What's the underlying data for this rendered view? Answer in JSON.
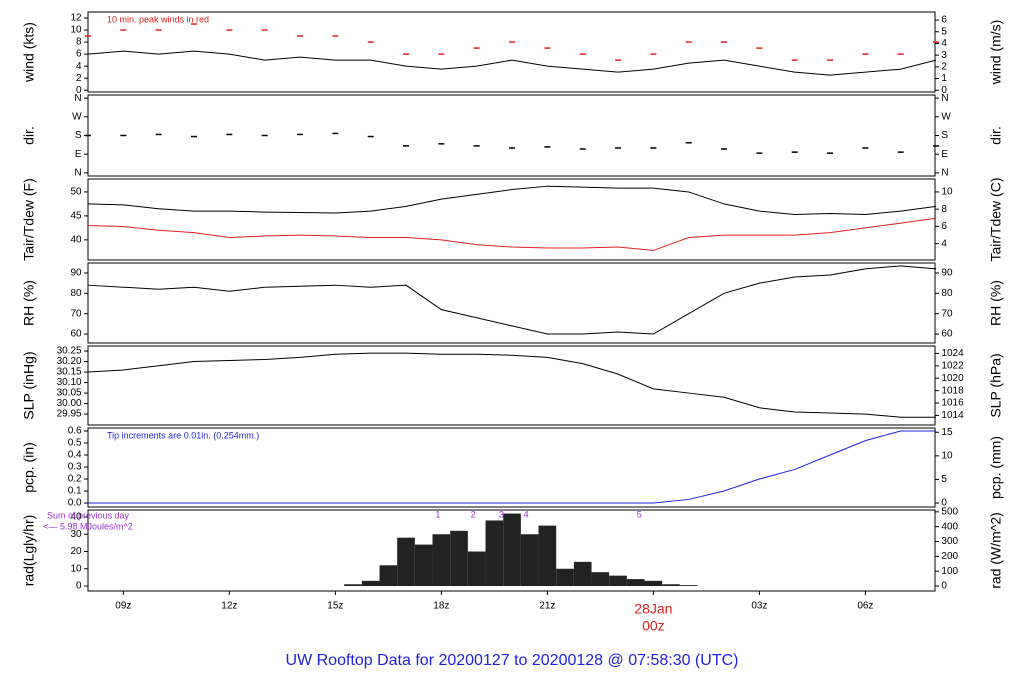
{
  "title": "UW Rooftop Data for 20200127  to  20200128 @ 07:58:30  (UTC)",
  "title_color": "#1f1fe0",
  "chart_data": [
    {
      "type": "line",
      "ylabel": "wind (kts)",
      "y2label": "wind (m/s)",
      "xlim": [
        8.0,
        31.97
      ],
      "ylim": [
        -0.3,
        13
      ],
      "yticks": [
        0,
        2,
        4,
        6,
        8,
        10,
        12
      ],
      "y2lim": [
        -0.15,
        6.69
      ],
      "y2ticks": [
        0,
        1,
        2,
        3,
        4,
        5,
        6
      ],
      "annotation": "10 min. peak winds in red",
      "annotation_color": "#e02020",
      "series": [
        {
          "name": "wind",
          "type": "line",
          "color": "#000000",
          "x": [
            8,
            9,
            10,
            11,
            12,
            13,
            14,
            15,
            16,
            17,
            18,
            19,
            20,
            21,
            22,
            23,
            24,
            25,
            26,
            27,
            28,
            29,
            30,
            31,
            32
          ],
          "values": [
            6,
            6.5,
            6,
            6.5,
            6,
            5,
            5.5,
            5,
            5,
            4,
            3.5,
            4,
            5,
            4,
            3.5,
            3,
            3.5,
            4.5,
            5,
            4,
            3,
            2.5,
            3,
            3.5,
            5
          ]
        },
        {
          "name": "peak",
          "type": "scatter",
          "color": "#e02020",
          "x": [
            8,
            9,
            10,
            11,
            12,
            13,
            14,
            15,
            16,
            17,
            18,
            19,
            20,
            21,
            22,
            23,
            24,
            25,
            26,
            27,
            28,
            29,
            30,
            31,
            32
          ],
          "values": [
            9,
            10,
            10,
            11,
            10,
            10,
            9,
            9,
            8,
            6,
            6,
            7,
            8,
            7,
            6,
            5,
            6,
            8,
            8,
            7,
            5,
            5,
            6,
            6,
            8
          ]
        }
      ]
    },
    {
      "type": "scatter",
      "ylabel": "dir.",
      "y2label": "dir.",
      "xlim": [
        8.0,
        31.97
      ],
      "ylim": [
        -15,
        375
      ],
      "yticks": [
        {
          "value": 0,
          "label": "N"
        },
        {
          "value": 90,
          "label": "E"
        },
        {
          "value": 180,
          "label": "S"
        },
        {
          "value": 270,
          "label": "W"
        },
        {
          "value": 360,
          "label": "N"
        }
      ],
      "y2lim": [
        -15,
        375
      ],
      "y2ticks": [
        {
          "value": 0,
          "label": "N"
        },
        {
          "value": 90,
          "label": "E"
        },
        {
          "value": 180,
          "label": "S"
        },
        {
          "value": 270,
          "label": "W"
        },
        {
          "value": 360,
          "label": "N"
        }
      ],
      "series": [
        {
          "name": "dir",
          "type": "scatter",
          "color": "#000000",
          "x": [
            8,
            9,
            10,
            11,
            12,
            13,
            14,
            15,
            16,
            17,
            18,
            19,
            20,
            21,
            22,
            23,
            24,
            25,
            26,
            27,
            28,
            29,
            30,
            31,
            32
          ],
          "values": [
            180,
            180,
            185,
            175,
            185,
            180,
            185,
            190,
            175,
            130,
            140,
            130,
            120,
            125,
            115,
            120,
            120,
            145,
            115,
            95,
            100,
            95,
            120,
            100,
            130
          ]
        }
      ]
    },
    {
      "type": "line",
      "ylabel": "Tair/Tdew (F)",
      "y2label": "Tair/Tdew (C)",
      "xlim": [
        8.0,
        31.97
      ],
      "ylim": [
        35.8,
        52.7
      ],
      "yticks": [
        40,
        45,
        50
      ],
      "y2lim": [
        2.1,
        11.5
      ],
      "y2ticks": [
        4,
        6,
        8,
        10
      ],
      "series": [
        {
          "name": "Tair",
          "type": "line",
          "color": "#000000",
          "x": [
            8,
            9,
            10,
            11,
            12,
            13,
            14,
            15,
            16,
            17,
            18,
            19,
            20,
            21,
            22,
            23,
            24,
            25,
            26,
            27,
            28,
            29,
            30,
            31,
            32
          ],
          "values": [
            47.5,
            47.3,
            46.5,
            46,
            46,
            45.8,
            45.7,
            45.6,
            46,
            47,
            48.5,
            49.5,
            50.5,
            51.2,
            51,
            50.8,
            50.8,
            50,
            47.5,
            46,
            45.3,
            45.5,
            45.3,
            46,
            47
          ]
        },
        {
          "name": "Tdew",
          "type": "line",
          "color": "#e02020",
          "x": [
            8,
            9,
            10,
            11,
            12,
            13,
            14,
            15,
            16,
            17,
            18,
            19,
            20,
            21,
            22,
            23,
            24,
            25,
            26,
            27,
            28,
            29,
            30,
            31,
            32
          ],
          "values": [
            43,
            42.8,
            42,
            41.5,
            40.5,
            40.8,
            41,
            40.8,
            40.5,
            40.5,
            40,
            39,
            38.5,
            38.3,
            38.3,
            38.5,
            37.8,
            40.5,
            41,
            41,
            41,
            41.5,
            42.5,
            43.5,
            44.5
          ]
        }
      ]
    },
    {
      "type": "line",
      "ylabel": "RH (%)",
      "y2label": "RH (%)",
      "xlim": [
        8.0,
        31.97
      ],
      "ylim": [
        55.6,
        94.9
      ],
      "yticks": [
        60,
        70,
        80,
        90
      ],
      "y2lim": [
        55.6,
        94.9
      ],
      "y2ticks": [
        60,
        70,
        80,
        90
      ],
      "series": [
        {
          "name": "RH",
          "type": "line",
          "color": "#000000",
          "x": [
            8,
            9,
            10,
            11,
            12,
            13,
            14,
            15,
            16,
            17,
            18,
            19,
            20,
            21,
            22,
            23,
            24,
            25,
            26,
            27,
            28,
            29,
            30,
            31,
            32
          ],
          "values": [
            84,
            83,
            82,
            83,
            81,
            83,
            83.5,
            84,
            83,
            84,
            72,
            68,
            64,
            60,
            60,
            61,
            60,
            70,
            80,
            85,
            88,
            89,
            92,
            93.5,
            92
          ]
        }
      ]
    },
    {
      "type": "line",
      "ylabel": "SLP (inHg)",
      "y2label": "SLP (hPa)",
      "xlim": [
        8.0,
        31.97
      ],
      "ylim": [
        29.898,
        30.274
      ],
      "yticks": [
        29.95,
        {
          "value": 30,
          "label": "30.00"
        },
        30.05,
        {
          "value": 30.1,
          "label": "30.10"
        },
        30.15,
        {
          "value": 30.2,
          "label": "30.20"
        },
        30.25
      ],
      "y2lim": [
        1012.46,
        1025.2
      ],
      "y2ticks": [
        1014,
        1016,
        1018,
        1020,
        1022,
        1024
      ],
      "series": [
        {
          "name": "SLP",
          "type": "line",
          "color": "#000000",
          "x": [
            8,
            9,
            10,
            11,
            12,
            13,
            14,
            15,
            16,
            17,
            18,
            19,
            20,
            21,
            22,
            23,
            24,
            25,
            26,
            27,
            28,
            29,
            30,
            31,
            32
          ],
          "values": [
            30.15,
            30.16,
            30.18,
            30.2,
            30.205,
            30.21,
            30.22,
            30.235,
            30.24,
            30.24,
            30.235,
            30.235,
            30.23,
            30.22,
            30.19,
            30.14,
            30.07,
            30.05,
            30.03,
            29.98,
            29.96,
            29.955,
            29.95,
            29.935,
            29.935
          ]
        }
      ]
    },
    {
      "type": "line",
      "ylabel": "pcp. (in)",
      "y2label": "pcp. (mm)",
      "xlim": [
        8.0,
        31.97
      ],
      "ylim": [
        -0.033,
        0.625
      ],
      "yticks": [
        {
          "value": 0,
          "label": "0.0"
        },
        0.1,
        0.2,
        0.3,
        0.4,
        0.5,
        0.6
      ],
      "y2lim": [
        -0.84,
        15.9
      ],
      "y2ticks": [
        0,
        5,
        10,
        15
      ],
      "annotation": "Tip increments are 0.01in. (0.254mm.)",
      "annotation_color": "#1f1fe0",
      "series": [
        {
          "name": "pcp",
          "type": "line",
          "color": "#1f1fe0",
          "x": [
            8,
            9,
            10,
            11,
            12,
            13,
            14,
            15,
            16,
            17,
            18,
            19,
            20,
            21,
            22,
            23,
            24,
            25,
            26,
            27,
            28,
            29,
            30,
            31,
            32
          ],
          "values": [
            0,
            0,
            0,
            0,
            0,
            0,
            0,
            0,
            0,
            0,
            0,
            0,
            0,
            0,
            0,
            0,
            0,
            0.03,
            0.1,
            0.2,
            0.28,
            0.4,
            0.52,
            0.6,
            0.6
          ]
        }
      ]
    },
    {
      "type": "bar",
      "ylabel": "rad(Lgly/hr)",
      "y2label": "rad (W/m^2)",
      "xlim": [
        8.0,
        31.97
      ],
      "ylim": [
        -2.9,
        44.06
      ],
      "yticks": [
        0,
        10,
        20,
        30,
        40
      ],
      "y2lim": [
        -33.7,
        512.4
      ],
      "y2ticks": [
        0,
        100,
        200,
        300,
        400,
        500
      ],
      "xticks": [
        {
          "value": 9,
          "label": "09z"
        },
        {
          "value": 12,
          "label": "12z"
        },
        {
          "value": 15,
          "label": "15z"
        },
        {
          "value": 18,
          "label": "18z"
        },
        {
          "value": 21,
          "label": "21z"
        },
        {
          "value": 24,
          "label": "00z",
          "color": "#e02020"
        },
        {
          "value": 27,
          "label": "03z"
        },
        {
          "value": 30,
          "label": "06z"
        }
      ],
      "date_label": "28Jan",
      "date_label_color": "#e02020",
      "notes": [
        "Sum of previous day",
        "<— 5.98 MJoules/m^2"
      ],
      "note_color": "#9933cc",
      "markers": [
        {
          "text": "1",
          "x": 17.9
        },
        {
          "text": "2",
          "x": 18.9
        },
        {
          "text": "3",
          "x": 19.7
        },
        {
          "text": "4",
          "x": 20.4
        },
        {
          "text": "5",
          "x": 23.6
        }
      ],
      "series": [
        {
          "name": "rad",
          "type": "bar",
          "color": "#222222",
          "x": [
            15,
            15.5,
            16,
            16.5,
            17,
            17.5,
            18,
            18.5,
            19,
            19.5,
            20,
            20.5,
            21,
            21.5,
            22,
            22.5,
            23,
            23.5,
            24,
            24.5,
            25,
            25.5
          ],
          "values": [
            0,
            1,
            3,
            12,
            28,
            24,
            30,
            32,
            20,
            38,
            42,
            30,
            35,
            10,
            14,
            8,
            6,
            4,
            3,
            1,
            0.5,
            0
          ]
        }
      ]
    }
  ]
}
